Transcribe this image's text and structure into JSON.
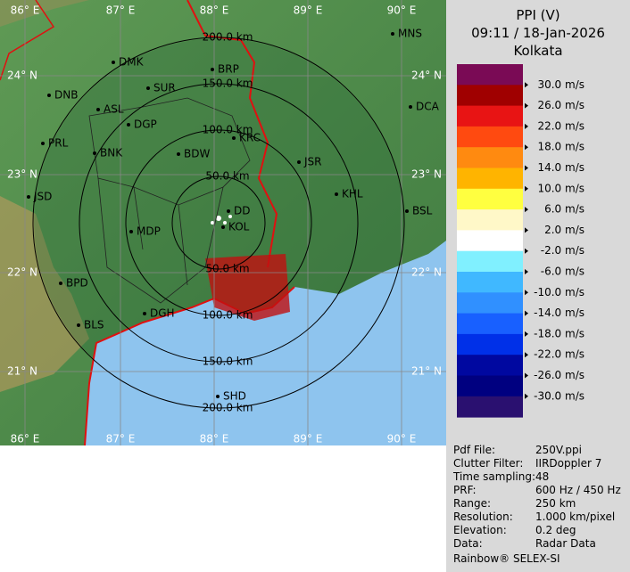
{
  "header": {
    "title": "PPI (V)",
    "time": "09:11 / 18-Jan-2026",
    "station": "Kolkata"
  },
  "legend": [
    "30.0 m/s",
    "26.0 m/s",
    "22.0 m/s",
    "18.0 m/s",
    "14.0 m/s",
    "10.0 m/s",
    "6.0 m/s",
    "2.0 m/s",
    "-2.0 m/s",
    "-6.0 m/s",
    "-10.0 m/s",
    "-14.0 m/s",
    "-18.0 m/s",
    "-22.0 m/s",
    "-26.0 m/s",
    "-30.0 m/s"
  ],
  "map": {
    "lon_labels": [
      "86° E",
      "87° E",
      "88° E",
      "89° E",
      "90° E"
    ],
    "lat_labels": [
      "24° N",
      "23° N",
      "22° N",
      "21° N"
    ],
    "range_labels": [
      "50.0 km",
      "100.0 km",
      "150.0 km",
      "200.0 km"
    ],
    "cities": [
      "MNS",
      "DMK",
      "BRP",
      "SUR",
      "DNB",
      "ASL",
      "DCA",
      "DGP",
      "KRC",
      "PRL",
      "BNK",
      "BDW",
      "JSR",
      "JSD",
      "KHL",
      "DD",
      "BSL",
      "MDP",
      "KOL",
      "BPD",
      "DGH",
      "BLS",
      "SHD"
    ]
  },
  "info": {
    "rows": [
      [
        "Pdf File:",
        "250V.ppi"
      ],
      [
        "Clutter Filter:",
        "IIRDoppler 7"
      ],
      [
        "Time sampling:",
        "48"
      ],
      [
        "PRF:",
        "600 Hz / 450 Hz"
      ],
      [
        "Range:",
        "250 km"
      ],
      [
        "Resolution:",
        "1.000 km/pixel"
      ],
      [
        "Elevation:",
        "0.2 deg"
      ],
      [
        "Data:",
        "Radar Data"
      ]
    ],
    "footer": "Rainbow® SELEX-SI"
  }
}
